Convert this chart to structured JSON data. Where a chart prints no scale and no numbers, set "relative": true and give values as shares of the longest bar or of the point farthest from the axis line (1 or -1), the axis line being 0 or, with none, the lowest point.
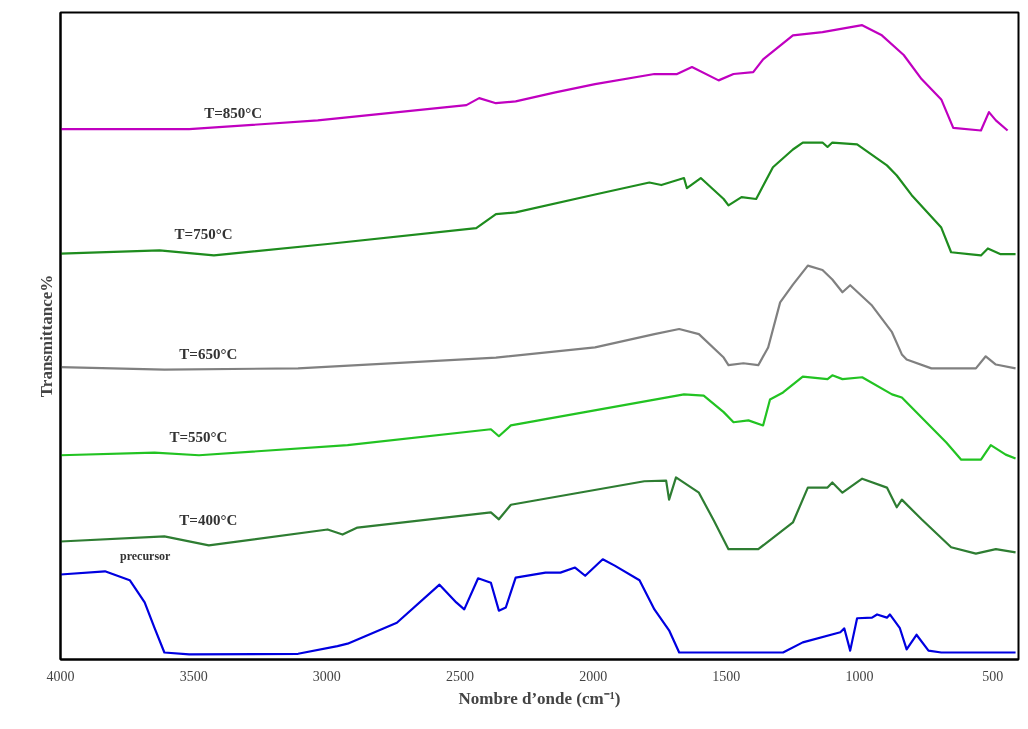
{
  "chart_data": {
    "type": "line",
    "relative": true,
    "xlabel": "Nombre d’onde (cm⁻¹)",
    "ylabel": "Transmittance%",
    "xlim": [
      4000,
      403
    ],
    "xticks": [
      4000,
      3500,
      3000,
      2500,
      2000,
      1500,
      1000,
      500
    ],
    "legend": false,
    "grid": false,
    "marker": "none",
    "line_style": "solid",
    "series": [
      {
        "name": "T=850°C",
        "color": "#c000c0",
        "x": [
          4000,
          3517,
          3034,
          2476,
          2428,
          2365,
          2291,
          2142,
          1993,
          1770,
          1685,
          1629,
          1529,
          1473,
          1399,
          1362,
          1250,
          1139,
          990,
          916,
          834,
          767,
          693,
          648,
          544,
          514,
          488,
          444
        ],
        "values": [
          0.836,
          0.836,
          0.85,
          0.874,
          0.885,
          0.877,
          0.88,
          0.894,
          0.907,
          0.923,
          0.923,
          0.934,
          0.913,
          0.923,
          0.926,
          0.946,
          0.984,
          0.989,
          1.0,
          0.984,
          0.953,
          0.915,
          0.883,
          0.838,
          0.834,
          0.863,
          0.85,
          0.834
        ]
      },
      {
        "name": "T=750°C",
        "color": "#1e8c1e",
        "x": [
          4000,
          3628,
          3424,
          2997,
          2439,
          2365,
          2291,
          1993,
          1789,
          1744,
          1659,
          1648,
          1596,
          1510,
          1492,
          1443,
          1388,
          1325,
          1250,
          1213,
          1139,
          1120,
          1102,
          1009,
          897,
          860,
          804,
          693,
          656,
          544,
          518,
          470,
          414
        ],
        "values": [
          0.64,
          0.645,
          0.637,
          0.655,
          0.68,
          0.702,
          0.705,
          0.733,
          0.752,
          0.748,
          0.759,
          0.743,
          0.759,
          0.726,
          0.716,
          0.729,
          0.726,
          0.776,
          0.804,
          0.815,
          0.815,
          0.808,
          0.815,
          0.812,
          0.779,
          0.763,
          0.732,
          0.681,
          0.642,
          0.637,
          0.648,
          0.639,
          0.639
        ]
      },
      {
        "name": "T=650°C",
        "color": "#808080",
        "x": [
          4000,
          3610,
          3108,
          2365,
          1993,
          1770,
          1677,
          1603,
          1510,
          1492,
          1436,
          1380,
          1343,
          1298,
          1250,
          1194,
          1139,
          1102,
          1064,
          1035,
          953,
          878,
          841,
          823,
          730,
          563,
          526,
          488,
          414
        ],
        "values": [
          0.461,
          0.457,
          0.459,
          0.476,
          0.492,
          0.513,
          0.521,
          0.513,
          0.476,
          0.464,
          0.467,
          0.464,
          0.492,
          0.563,
          0.591,
          0.621,
          0.614,
          0.599,
          0.579,
          0.59,
          0.558,
          0.516,
          0.481,
          0.473,
          0.459,
          0.459,
          0.478,
          0.465,
          0.459
        ]
      },
      {
        "name": "T=550°C",
        "color": "#22c322",
        "x": [
          4000,
          3647,
          3480,
          2922,
          2384,
          2354,
          2309,
          1659,
          1585,
          1510,
          1473,
          1417,
          1362,
          1336,
          1287,
          1213,
          1120,
          1102,
          1064,
          990,
          878,
          841,
          674,
          618,
          544,
          507,
          451,
          414
        ],
        "values": [
          0.322,
          0.326,
          0.322,
          0.338,
          0.363,
          0.352,
          0.369,
          0.418,
          0.416,
          0.39,
          0.374,
          0.377,
          0.369,
          0.41,
          0.421,
          0.446,
          0.442,
          0.448,
          0.442,
          0.445,
          0.418,
          0.413,
          0.342,
          0.315,
          0.315,
          0.338,
          0.323,
          0.317
        ]
      },
      {
        "name": "T=400°C",
        "color": "#2e7d32",
        "x": [
          4000,
          3610,
          3443,
          2997,
          2941,
          2885,
          2384,
          2354,
          2309,
          1808,
          1726,
          1715,
          1689,
          1603,
          1547,
          1492,
          1380,
          1250,
          1194,
          1120,
          1102,
          1064,
          990,
          897,
          860,
          841,
          767,
          656,
          563,
          488,
          414
        ],
        "values": [
          0.186,
          0.194,
          0.18,
          0.205,
          0.197,
          0.208,
          0.232,
          0.221,
          0.244,
          0.281,
          0.282,
          0.252,
          0.287,
          0.263,
          0.219,
          0.174,
          0.174,
          0.216,
          0.271,
          0.271,
          0.279,
          0.263,
          0.285,
          0.271,
          0.24,
          0.252,
          0.221,
          0.177,
          0.167,
          0.174,
          0.169
        ]
      },
      {
        "name": "precursor",
        "color": "#0000e0",
        "x": [
          4000,
          3833,
          3740,
          3684,
          3647,
          3610,
          3517,
          3108,
          2960,
          2922,
          2737,
          2577,
          2514,
          2484,
          2432,
          2384,
          2354,
          2328,
          2291,
          2179,
          2123,
          2068,
          2030,
          1964,
          1919,
          1826,
          1770,
          1715,
          1677,
          1492,
          1287,
          1213,
          1072,
          1057,
          1035,
          1009,
          953,
          934,
          897,
          886,
          849,
          823,
          786,
          741,
          693,
          414
        ],
        "values": [
          0.134,
          0.139,
          0.125,
          0.09,
          0.05,
          0.011,
          0.008,
          0.009,
          0.021,
          0.025,
          0.058,
          0.118,
          0.09,
          0.079,
          0.128,
          0.121,
          0.077,
          0.082,
          0.129,
          0.137,
          0.137,
          0.145,
          0.132,
          0.158,
          0.148,
          0.125,
          0.079,
          0.046,
          0.011,
          0.011,
          0.011,
          0.027,
          0.043,
          0.049,
          0.014,
          0.065,
          0.066,
          0.071,
          0.066,
          0.071,
          0.05,
          0.016,
          0.039,
          0.014,
          0.011,
          0.011
        ]
      }
    ]
  }
}
